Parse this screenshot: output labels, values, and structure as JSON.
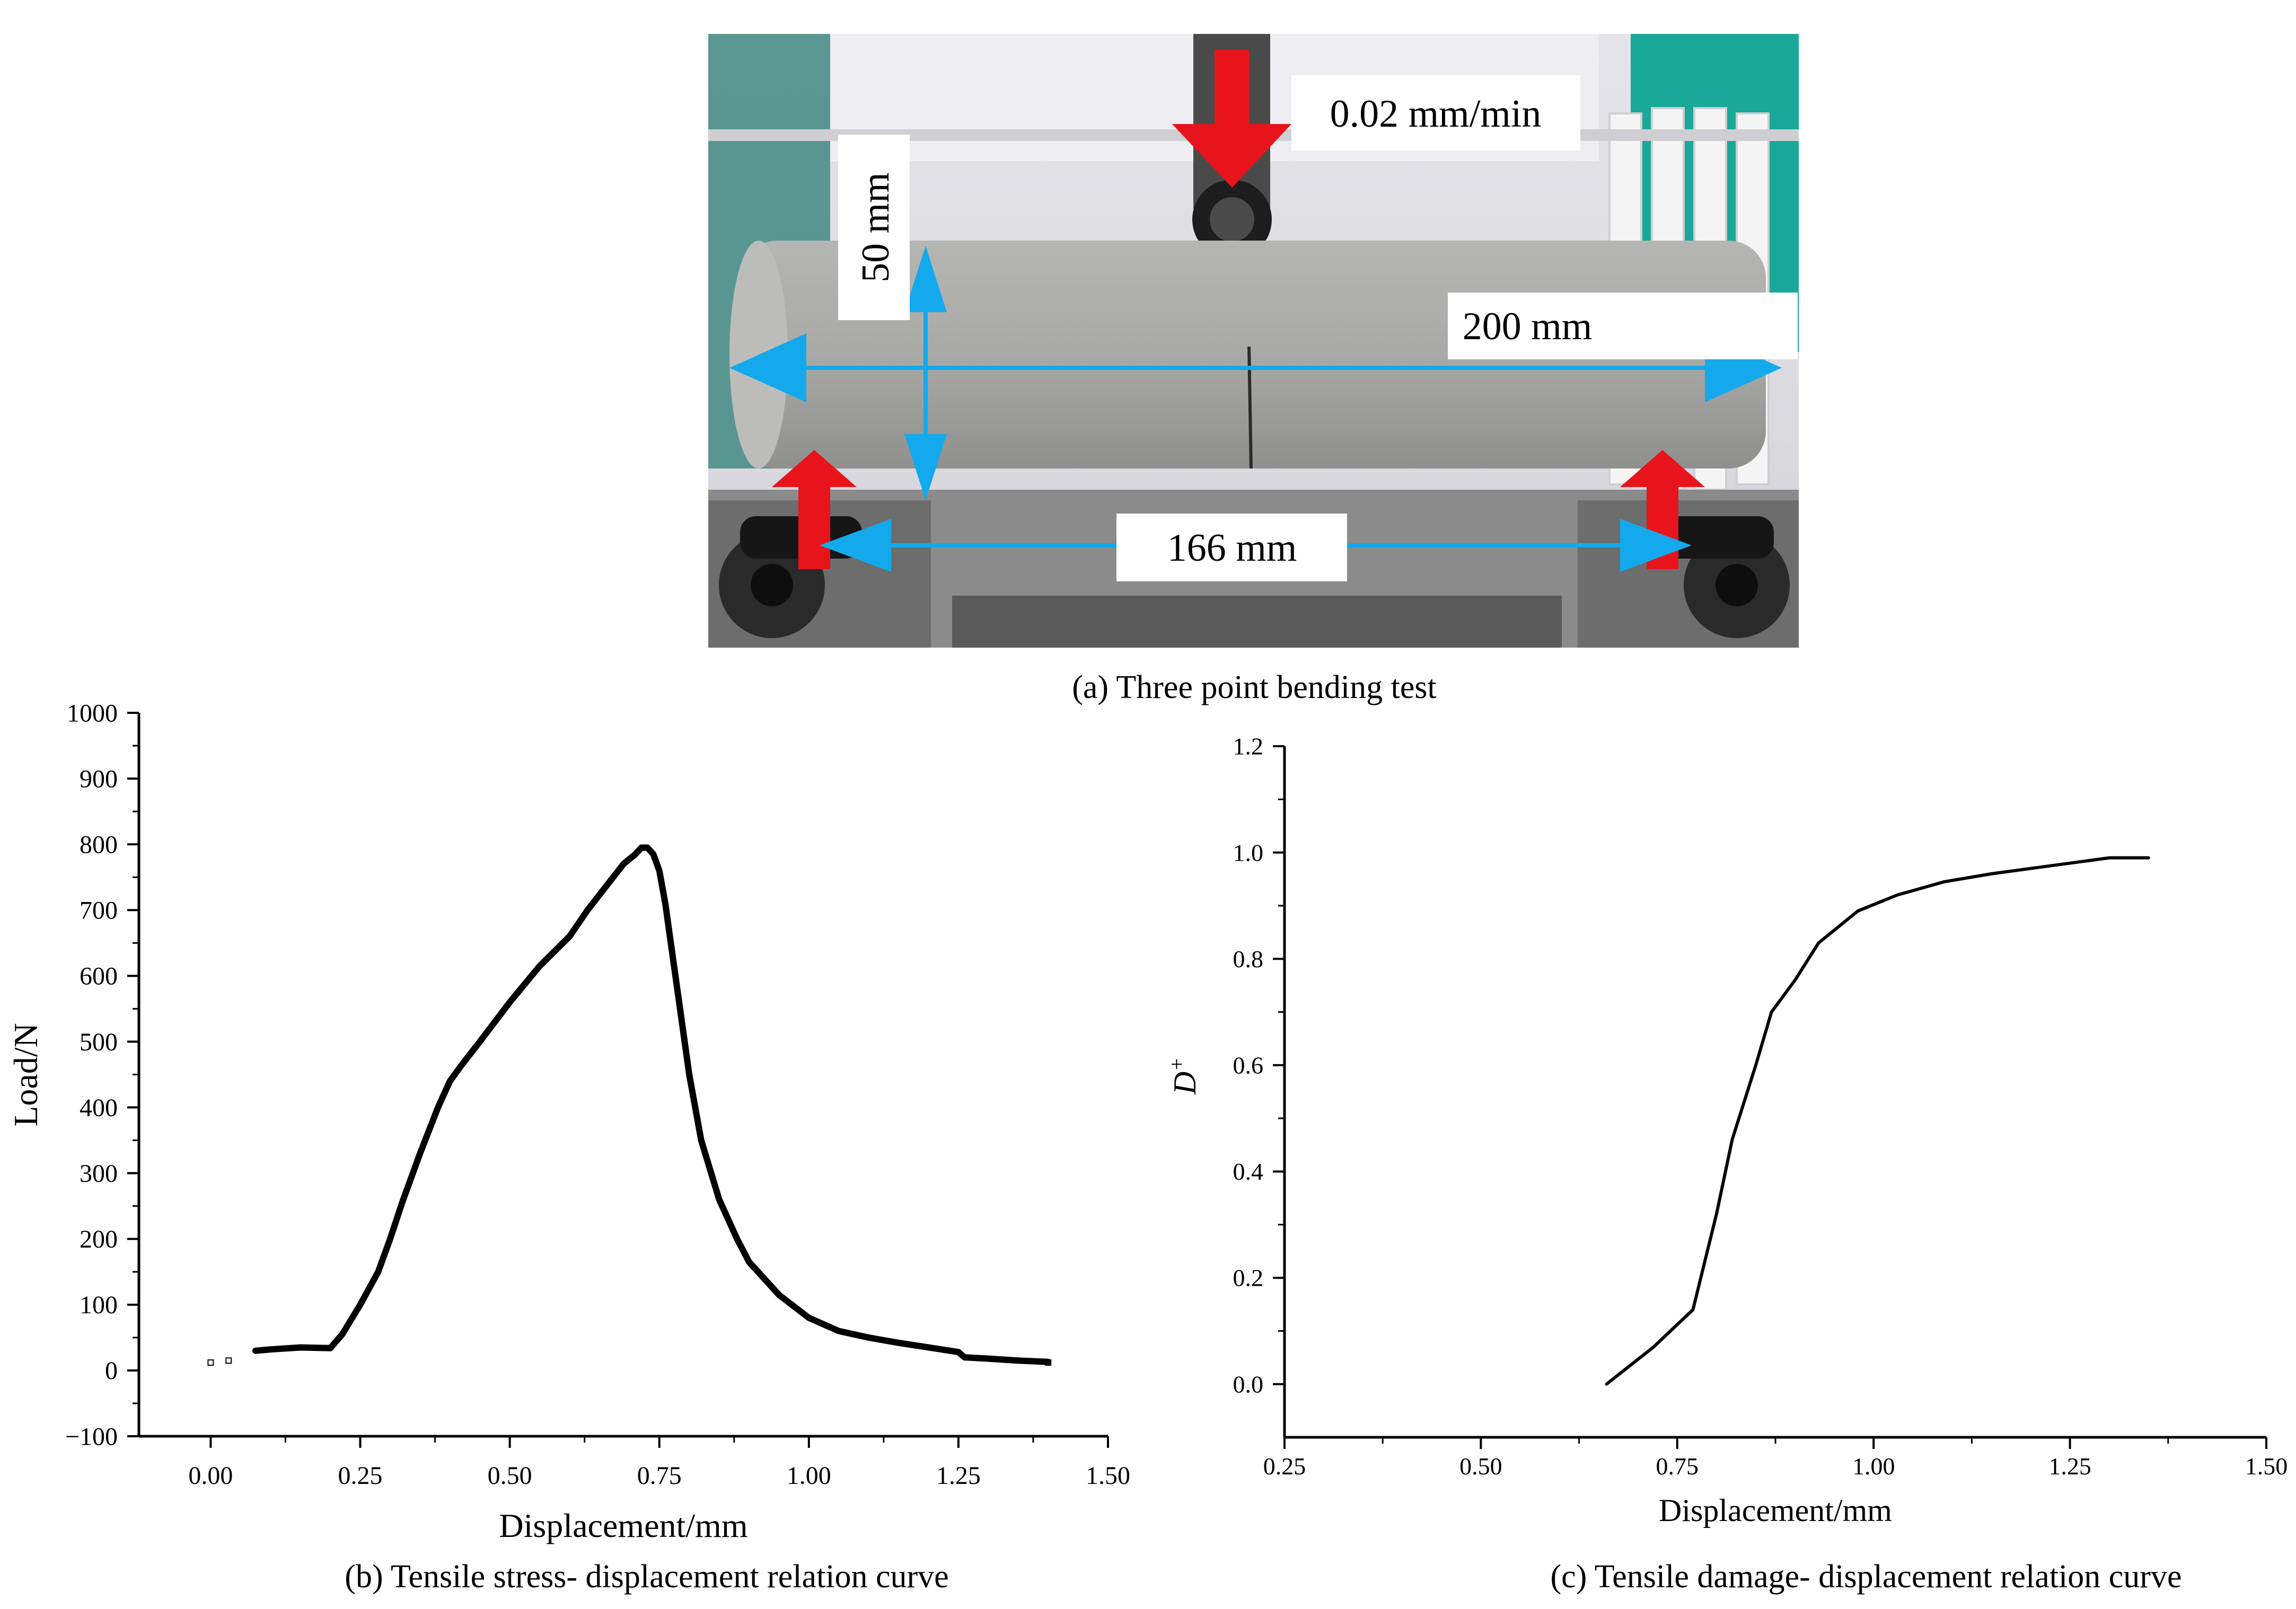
{
  "photo": {
    "labels": {
      "speed": "0.02 mm/min",
      "height": "50 mm",
      "length": "200 mm",
      "span": "166 mm"
    },
    "colors": {
      "load_arrow": "#e8141c",
      "dimension_arrow": "#14a9ec",
      "specimen": "#a9aaa8",
      "background_wall": "#e9e9ee",
      "teal_panel": "#1aa89a"
    }
  },
  "captions": {
    "a": "(a) Three point bending test",
    "b": "(b) Tensile stress- displacement relation curve",
    "c": "(c) Tensile damage- displacement relation curve"
  },
  "chart_data": [
    {
      "type": "line",
      "xlabel": "Displacement/mm",
      "ylabel": "Load/N",
      "xlim": [
        -0.12,
        1.5
      ],
      "ylim": [
        -100,
        1000
      ],
      "xticks": [
        "0.00",
        "0.25",
        "0.50",
        "0.75",
        "1.00",
        "1.25",
        "1.50"
      ],
      "yticks": [
        "−100",
        "0",
        "100",
        "200",
        "300",
        "400",
        "500",
        "600",
        "700",
        "800",
        "900",
        "1000"
      ],
      "grid": false,
      "series": [
        {
          "x": [
            0.075,
            0.1,
            0.15,
            0.2,
            0.22,
            0.25,
            0.28,
            0.3,
            0.32,
            0.35,
            0.38,
            0.4,
            0.42,
            0.45,
            0.5,
            0.55,
            0.6,
            0.63,
            0.66,
            0.69,
            0.71,
            0.72,
            0.73,
            0.74,
            0.75,
            0.76,
            0.78,
            0.8,
            0.82,
            0.85,
            0.88,
            0.9,
            0.95,
            1.0,
            1.05,
            1.1,
            1.15,
            1.2,
            1.25,
            1.26,
            1.3,
            1.35,
            1.4
          ],
          "y": [
            30,
            32,
            35,
            34,
            55,
            100,
            150,
            200,
            255,
            330,
            400,
            440,
            465,
            500,
            560,
            615,
            660,
            700,
            735,
            770,
            785,
            795,
            795,
            785,
            760,
            710,
            580,
            450,
            350,
            260,
            200,
            165,
            115,
            80,
            60,
            50,
            42,
            35,
            28,
            20,
            18,
            15,
            13
          ]
        }
      ],
      "markers": [
        {
          "x": 0.0,
          "y": 12
        },
        {
          "x": 0.03,
          "y": 15
        },
        {
          "x": 1.4,
          "y": 12
        }
      ]
    },
    {
      "type": "line",
      "xlabel": "Displacement/mm",
      "ylabel": "D+",
      "xlim": [
        0.25,
        1.5
      ],
      "ylim": [
        -0.1,
        1.2
      ],
      "xticks": [
        "0.25",
        "0.50",
        "0.75",
        "1.00",
        "1.25",
        "1.50"
      ],
      "yticks": [
        "0.0",
        "0.2",
        "0.4",
        "0.6",
        "0.8",
        "1.0",
        "1.2"
      ],
      "grid": false,
      "series": [
        {
          "x": [
            0.66,
            0.72,
            0.77,
            0.8,
            0.82,
            0.85,
            0.87,
            0.9,
            0.93,
            0.98,
            1.03,
            1.09,
            1.15,
            1.2,
            1.25,
            1.3,
            1.35
          ],
          "y": [
            0.0,
            0.07,
            0.14,
            0.32,
            0.46,
            0.6,
            0.7,
            0.76,
            0.83,
            0.89,
            0.92,
            0.945,
            0.96,
            0.97,
            0.98,
            0.99,
            0.99
          ]
        }
      ]
    }
  ]
}
